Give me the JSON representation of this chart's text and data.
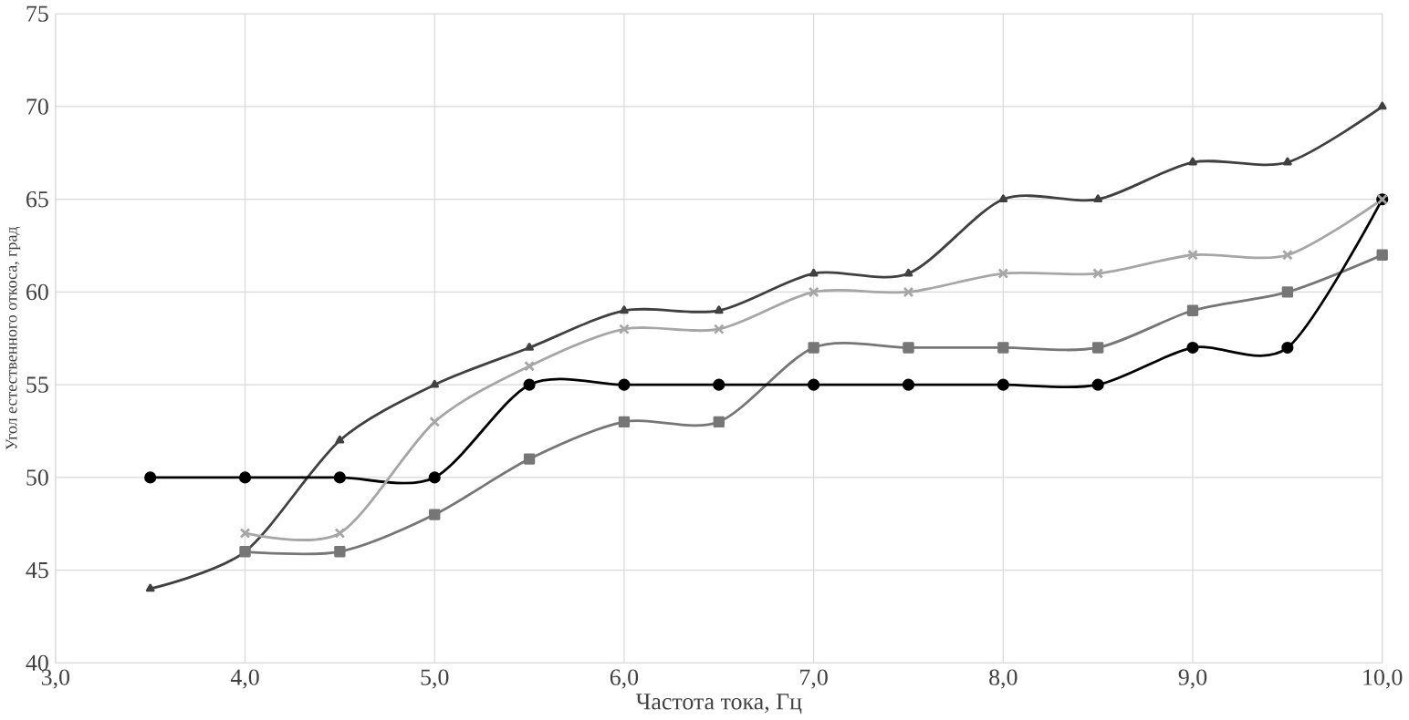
{
  "chart_data": {
    "type": "line",
    "xlabel": "Частота тока, Гц",
    "ylabel": "Угол естественного откоса, град",
    "x": [
      3.5,
      4.0,
      4.5,
      5.0,
      5.5,
      6.0,
      6.5,
      7.0,
      7.5,
      8.0,
      8.5,
      9.0,
      9.5,
      10.0
    ],
    "series": [
      {
        "color": "#404040",
        "marker": "triangle",
        "values": [
          44,
          46,
          52,
          55,
          57,
          59,
          59,
          61,
          61,
          65,
          65,
          67,
          67,
          70
        ]
      },
      {
        "color": "#767676",
        "marker": "square",
        "values": [
          null,
          46,
          46,
          48,
          51,
          53,
          53,
          57,
          57,
          57,
          57,
          59,
          60,
          62
        ]
      },
      {
        "color": "#000000",
        "marker": "circle",
        "values": [
          50,
          50,
          50,
          50,
          55,
          55,
          55,
          55,
          55,
          55,
          55,
          57,
          57,
          65
        ]
      },
      {
        "color": "#a6a6a6",
        "marker": "cross",
        "values": [
          null,
          47,
          47,
          53,
          56,
          58,
          58,
          60,
          60,
          61,
          61,
          62,
          62,
          65
        ]
      }
    ],
    "xlim": [
      3.0,
      10.0
    ],
    "ylim": [
      40,
      75
    ],
    "xticks": [
      {
        "value": 3,
        "label": "3,0"
      },
      {
        "value": 4,
        "label": "4,0"
      },
      {
        "value": 5,
        "label": "5,0"
      },
      {
        "value": 6,
        "label": "6,0"
      },
      {
        "value": 7,
        "label": "7,0"
      },
      {
        "value": 8,
        "label": "8,0"
      },
      {
        "value": 9,
        "label": "9,0"
      },
      {
        "value": 10,
        "label": "10,0"
      }
    ],
    "yticks": [
      40,
      45,
      50,
      55,
      60,
      65,
      70,
      75
    ],
    "grid": true,
    "line_style": "solid"
  }
}
